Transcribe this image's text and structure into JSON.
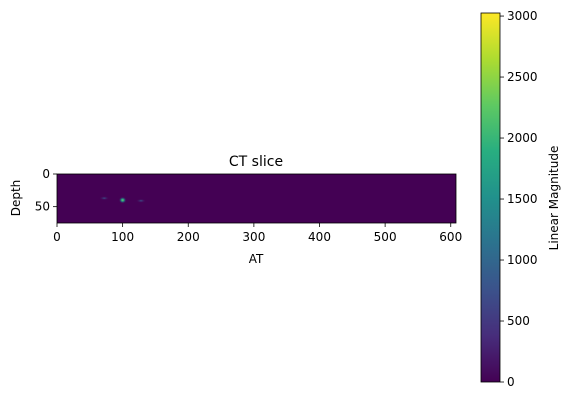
{
  "chart_data": {
    "type": "heatmap",
    "title": "CT slice",
    "xlabel": "AT",
    "ylabel": "Depth",
    "x_extent": [
      0,
      608
    ],
    "y_extent": [
      75,
      0
    ],
    "xticks": [
      0,
      100,
      200,
      300,
      400,
      500,
      600
    ],
    "yticks": [
      0,
      50
    ],
    "background_value": 0,
    "bright_spots": [
      {
        "x": 100,
        "y": 40,
        "value": 1400
      },
      {
        "x": 72,
        "y": 37,
        "value": 200
      },
      {
        "x": 128,
        "y": 41,
        "value": 150
      }
    ],
    "colorbar": {
      "label": "Linear Magnitude",
      "range": [
        0,
        3025
      ],
      "ticks": [
        0,
        500,
        1000,
        1500,
        2000,
        2500,
        3000
      ],
      "colormap": "viridis"
    }
  }
}
